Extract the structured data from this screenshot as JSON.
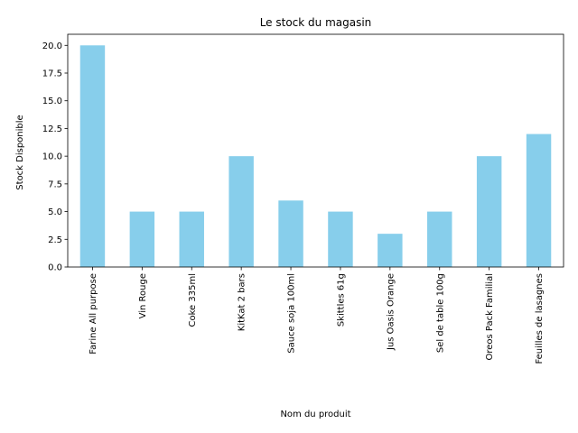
{
  "chart_data": {
    "type": "bar",
    "title": "Le stock du magasin",
    "xlabel": "Nom du produit",
    "ylabel": "Stock Disponible",
    "categories": [
      "Farine All purpose",
      "Vin Rouge",
      "Coke 335ml",
      "KitKat 2 bars",
      "Sauce soja 100ml",
      "Skittles 61g",
      "Jus Oasis Orange",
      "Sel de table 100g",
      "Oreos Pack Familial",
      "Feuilles de lasagnes"
    ],
    "values": [
      20,
      5,
      5,
      10,
      6,
      5,
      3,
      5,
      10,
      12
    ],
    "ylim": [
      0,
      21
    ],
    "yticks": [
      "0.0",
      "2.5",
      "5.0",
      "7.5",
      "10.0",
      "12.5",
      "15.0",
      "17.5",
      "20.0"
    ],
    "bar_color": "#87ceeb",
    "grid": false,
    "legend": "none"
  }
}
